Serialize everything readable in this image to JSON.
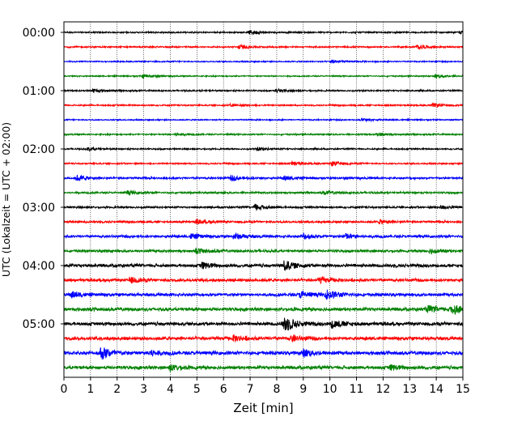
{
  "chart_data": {
    "type": "line",
    "xlabel": "Zeit  [min]",
    "ylabel": "UTC (Lokalzeit = UTC + 02:00)",
    "xlim": [
      0,
      15
    ],
    "x_ticks": [
      "0",
      "1",
      "2",
      "3",
      "4",
      "5",
      "6",
      "7",
      "8",
      "9",
      "10",
      "11",
      "12",
      "13",
      "14",
      "15"
    ],
    "y_tick_labels": [
      "00:00",
      "01:00",
      "02:00",
      "03:00",
      "04:00",
      "05:00"
    ],
    "y_tick_rows": [
      0,
      4,
      8,
      12,
      16,
      20
    ],
    "grid": "vertical dotted lines at each minute",
    "trace_interval_min": 15,
    "row_colors": [
      "#000000",
      "#ff0000",
      "#0000ff",
      "#008000"
    ],
    "rows": [
      {
        "start": "00:00",
        "amp": 0.35,
        "events": [
          {
            "t": 7.0,
            "a": 0.9
          },
          {
            "t": 14.9,
            "a": 0.5
          }
        ]
      },
      {
        "start": "00:15",
        "amp": 0.35,
        "events": [
          {
            "t": 6.6,
            "a": 1.0
          },
          {
            "t": 13.3,
            "a": 1.0
          }
        ]
      },
      {
        "start": "00:30",
        "amp": 0.3,
        "events": [
          {
            "t": 10.1,
            "a": 0.7
          }
        ]
      },
      {
        "start": "00:45",
        "amp": 0.3,
        "events": [
          {
            "t": 3.0,
            "a": 0.8
          },
          {
            "t": 14.0,
            "a": 0.8
          }
        ]
      },
      {
        "start": "01:00",
        "amp": 0.35,
        "events": [
          {
            "t": 1.1,
            "a": 0.9
          },
          {
            "t": 8.0,
            "a": 0.7
          }
        ]
      },
      {
        "start": "01:15",
        "amp": 0.35,
        "events": [
          {
            "t": 6.3,
            "a": 0.6
          },
          {
            "t": 13.9,
            "a": 0.8
          }
        ]
      },
      {
        "start": "01:30",
        "amp": 0.3,
        "events": [
          {
            "t": 11.2,
            "a": 0.6
          }
        ]
      },
      {
        "start": "01:45",
        "amp": 0.35,
        "events": [
          {
            "t": 4.2,
            "a": 0.6
          },
          {
            "t": 11.8,
            "a": 0.7
          }
        ]
      },
      {
        "start": "02:00",
        "amp": 0.35,
        "events": [
          {
            "t": 0.9,
            "a": 0.7
          },
          {
            "t": 7.3,
            "a": 0.7
          }
        ]
      },
      {
        "start": "02:15",
        "amp": 0.35,
        "events": [
          {
            "t": 8.6,
            "a": 0.8
          },
          {
            "t": 10.1,
            "a": 1.0
          }
        ]
      },
      {
        "start": "02:30",
        "amp": 0.5,
        "events": [
          {
            "t": 0.5,
            "a": 1.2
          },
          {
            "t": 6.3,
            "a": 1.1
          },
          {
            "t": 8.3,
            "a": 0.9
          }
        ]
      },
      {
        "start": "02:45",
        "amp": 0.45,
        "events": [
          {
            "t": 2.4,
            "a": 0.8
          },
          {
            "t": 9.8,
            "a": 0.8
          }
        ]
      },
      {
        "start": "03:00",
        "amp": 0.45,
        "events": [
          {
            "t": 7.2,
            "a": 1.4
          },
          {
            "t": 14.2,
            "a": 0.8
          }
        ]
      },
      {
        "start": "03:15",
        "amp": 0.5,
        "events": [
          {
            "t": 5.0,
            "a": 0.8
          },
          {
            "t": 11.9,
            "a": 0.9
          }
        ]
      },
      {
        "start": "03:30",
        "amp": 0.6,
        "events": [
          {
            "t": 4.8,
            "a": 1.2
          },
          {
            "t": 6.4,
            "a": 1.3
          },
          {
            "t": 9.0,
            "a": 1.3
          },
          {
            "t": 10.6,
            "a": 1.2
          }
        ]
      },
      {
        "start": "03:45",
        "amp": 0.6,
        "events": [
          {
            "t": 5.0,
            "a": 1.1
          },
          {
            "t": 13.8,
            "a": 1.0
          }
        ]
      },
      {
        "start": "04:00",
        "amp": 0.75,
        "events": [
          {
            "t": 5.2,
            "a": 1.4
          },
          {
            "t": 8.3,
            "a": 2.2
          }
        ]
      },
      {
        "start": "04:15",
        "amp": 0.7,
        "events": [
          {
            "t": 2.5,
            "a": 1.2
          },
          {
            "t": 9.6,
            "a": 1.2
          }
        ]
      },
      {
        "start": "04:30",
        "amp": 0.75,
        "events": [
          {
            "t": 0.3,
            "a": 1.3
          },
          {
            "t": 8.9,
            "a": 1.5
          },
          {
            "t": 9.9,
            "a": 2.1
          }
        ]
      },
      {
        "start": "04:45",
        "amp": 0.8,
        "events": [
          {
            "t": 13.7,
            "a": 1.4
          },
          {
            "t": 14.6,
            "a": 2.2
          }
        ]
      },
      {
        "start": "05:00",
        "amp": 0.8,
        "events": [
          {
            "t": 8.3,
            "a": 3.8
          },
          {
            "t": 10.1,
            "a": 1.8
          }
        ]
      },
      {
        "start": "05:15",
        "amp": 0.8,
        "events": [
          {
            "t": 6.4,
            "a": 1.2
          },
          {
            "t": 8.6,
            "a": 1.3
          }
        ]
      },
      {
        "start": "05:30",
        "amp": 0.85,
        "events": [
          {
            "t": 1.4,
            "a": 3.0
          },
          {
            "t": 3.2,
            "a": 1.3
          },
          {
            "t": 9.0,
            "a": 1.5
          }
        ]
      },
      {
        "start": "05:45",
        "amp": 0.8,
        "events": [
          {
            "t": 4.0,
            "a": 1.2
          },
          {
            "t": 12.3,
            "a": 1.1
          }
        ]
      }
    ]
  }
}
